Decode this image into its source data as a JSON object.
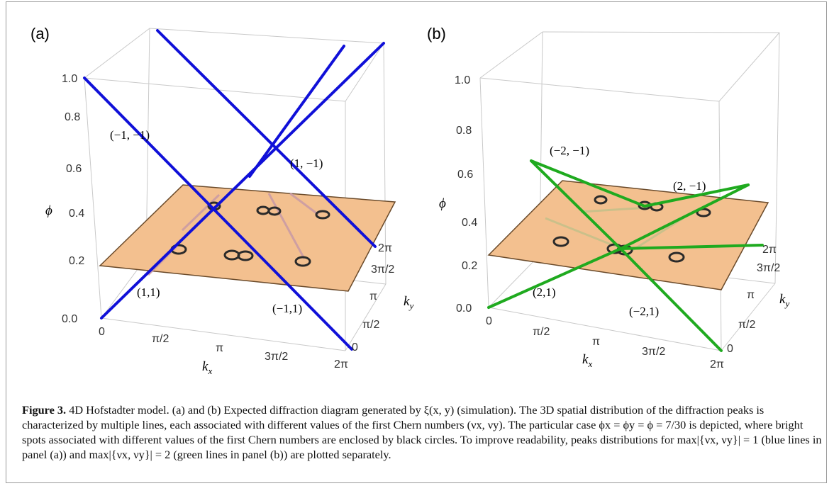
{
  "panels": [
    {
      "label": "(a)",
      "z_ticks": [
        "0.0",
        "0.2",
        "0.4",
        "0.6",
        "0.8",
        "1.0"
      ],
      "z_title": "ϕ",
      "kx_ticks": [
        "0",
        "π/2",
        "π",
        "3π/2",
        "2π"
      ],
      "kx_title": "k",
      "kx_sub": "x",
      "ky_ticks": [
        "0",
        "π/2",
        "π",
        "3π/2",
        "2π"
      ],
      "ky_title": "k",
      "ky_sub": "y",
      "line_color": "#1010d8",
      "line_labels": [
        "(−1, −1)",
        "(1, −1)",
        "(1,1)",
        "(−1,1)"
      ]
    },
    {
      "label": "(b)",
      "z_ticks": [
        "0.0",
        "0.2",
        "0.4",
        "0.6",
        "0.8",
        "1.0"
      ],
      "z_title": "ϕ",
      "kx_ticks": [
        "0",
        "π/2",
        "π",
        "3π/2",
        "2π"
      ],
      "kx_title": "k",
      "kx_sub": "x",
      "ky_ticks": [
        "0",
        "π/2",
        "π",
        "3π/2",
        "2π"
      ],
      "ky_title": "k",
      "ky_sub": "y",
      "line_color": "#1faa1f",
      "line_labels": [
        "(−2, −1)",
        "(2, −1)",
        "(2,1)",
        "(−2,1)"
      ]
    }
  ],
  "plane_color": "#f3c08f",
  "caption": {
    "label": "Figure 3.",
    "text": "4D Hofstadter model. (a) and (b) Expected diffraction diagram generated by ξ(x, y) (simulation). The 3D spatial distribution of the diffraction peaks is characterized by multiple lines, each associated with different values of the first Chern numbers (νx, νy). The particular case ϕx = ϕy = ϕ = 7/30 is depicted, where bright spots associated with different values of the first Chern numbers are enclosed by black circles. To improve readability, peaks distributions for max|{νx, νy}| = 1 (blue lines in panel (a)) and max|{νx, νy}| = 2 (green lines in panel (b)) are plotted separately."
  }
}
